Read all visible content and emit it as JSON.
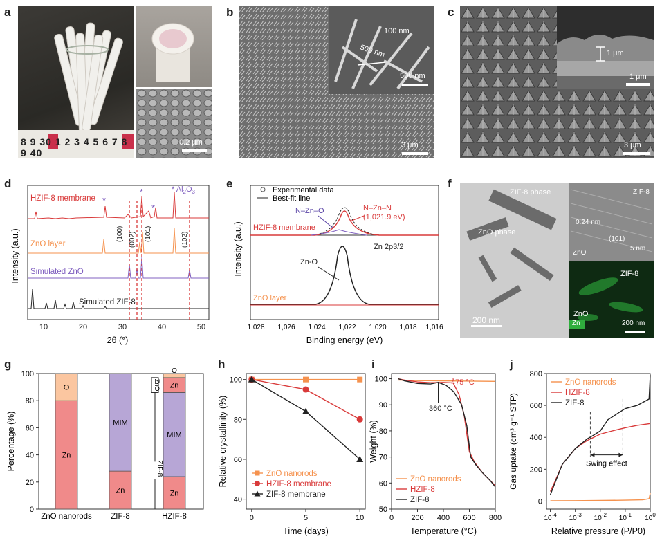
{
  "panels": {
    "a": {
      "label": "a",
      "ruler_text": "8 9 30 1 2 3 4 5 6 7 8 9 40",
      "scale": "0.2 μm"
    },
    "b": {
      "label": "b",
      "inset_dim1": "100 nm",
      "inset_dim2": "500 nm",
      "inset_scale": "500 nm",
      "scale": "3 μm"
    },
    "c": {
      "label": "c",
      "inset_dim": "1 μm",
      "inset_scale": "1 μm",
      "scale": "3 μm"
    },
    "d": {
      "label": "d",
      "ylabel": "Intensity (a.u.)",
      "xlabel": "2θ (°)",
      "series": [
        "HZIF-8 membrane",
        "ZnO layer",
        "Simulated ZnO",
        "Simulated ZIF-8"
      ],
      "legend_al": "Al",
      "legend_al_sub1": "2",
      "legend_al_o": "O",
      "legend_al_sub2": "3",
      "star": "*",
      "peaks": [
        "(100)",
        "(002)",
        "(101)",
        "(102)"
      ],
      "xticks": [
        "10",
        "20",
        "30",
        "40",
        "50"
      ]
    },
    "e": {
      "label": "e",
      "legend": [
        "Experimental data",
        "Best-fit line"
      ],
      "ann": [
        "N–Zn–O",
        "N–Zn–N",
        "(1,021.9 eV)",
        "HZIF-8 membrane",
        "Zn 2p3/2",
        "Zn-O",
        "ZnO layer"
      ],
      "ylabel": "Intensity (a.u.)",
      "xlabel": "Binding energy (eV)",
      "xticks": [
        "1,028",
        "1,026",
        "1,024",
        "1,022",
        "1,020",
        "1,018",
        "1,016"
      ]
    },
    "f": {
      "label": "f",
      "ann": [
        "ZIF-8 phase",
        "ZnO phase",
        "0.24 nm",
        "(101)",
        "ZnO",
        "ZIF-8",
        "ZIF-8",
        "ZnO",
        "Zn"
      ],
      "scale1": "200 nm",
      "scale2": "5 nm",
      "scale3": "200 nm"
    },
    "g": {
      "label": "g"
    },
    "h": {
      "label": "h"
    },
    "i": {
      "label": "i"
    },
    "j": {
      "label": "j"
    }
  },
  "chart_data": [
    {
      "panel": "g",
      "type": "bar",
      "categories": [
        "ZnO nanorods",
        "ZIF-8",
        "HZIF-8"
      ],
      "series": [
        {
          "name": "Zn",
          "values": [
            80,
            28,
            24
          ]
        },
        {
          "name": "MIM",
          "values": [
            0,
            72,
            62
          ]
        },
        {
          "name": "Zn",
          "values": [
            0,
            0,
            11
          ]
        },
        {
          "name": "O",
          "values": [
            20,
            0,
            3
          ]
        }
      ],
      "ylabel": "Percentage (%)",
      "ylim": [
        0,
        100
      ],
      "yticks": [
        "0",
        "20",
        "40",
        "60",
        "80",
        "100"
      ],
      "bracket_labels": [
        "ZnO",
        "ZIF-8"
      ],
      "colors": {
        "Zn": "#f08a8a",
        "MIM": "#b7a6d6",
        "O": "#fbc6a0"
      }
    },
    {
      "panel": "h",
      "type": "line",
      "x": [
        0,
        5,
        10
      ],
      "series": [
        {
          "name": "ZnO nanorods",
          "values": [
            100,
            100,
            100
          ],
          "color": "#f5924e"
        },
        {
          "name": "HZIF-8 membrane",
          "values": [
            100,
            95,
            80
          ],
          "color": "#d93a3a"
        },
        {
          "name": "ZIF-8 membrane",
          "values": [
            100,
            84,
            60
          ],
          "color": "#222222"
        }
      ],
      "xlabel": "Time (days)",
      "ylabel": "Relative crystallinity (%)",
      "ylim": [
        35,
        103
      ],
      "xlim": [
        -0.5,
        10.5
      ],
      "xticks": [
        "0",
        "5",
        "10"
      ],
      "yticks": [
        "40",
        "60",
        "80",
        "100"
      ]
    },
    {
      "panel": "i",
      "type": "line",
      "series": [
        {
          "name": "ZnO nanorods",
          "color": "#f5924e",
          "x": [
            50,
            200,
            400,
            600,
            800
          ],
          "values": [
            99.5,
            99.3,
            99.2,
            99.1,
            99
          ]
        },
        {
          "name": "HZIF-8",
          "color": "#d93a3a",
          "x": [
            50,
            100,
            200,
            300,
            400,
            475,
            520,
            560,
            600,
            640,
            700,
            760,
            800
          ],
          "values": [
            100,
            99.5,
            98.8,
            98.5,
            98.6,
            98.4,
            94,
            86,
            72,
            68,
            64,
            61,
            59
          ]
        },
        {
          "name": "ZIF-8",
          "color": "#222222",
          "x": [
            50,
            100,
            200,
            300,
            360,
            420,
            480,
            540,
            580,
            610,
            650,
            700,
            760,
            800
          ],
          "values": [
            100,
            99.2,
            98.2,
            98,
            98.6,
            97.5,
            95,
            90,
            82,
            70,
            67,
            64,
            61,
            58.5
          ]
        }
      ],
      "annotations": [
        "475 °C",
        "360 °C"
      ],
      "xlabel": "Temperature (°C)",
      "ylabel": "Weight (%)",
      "ylim": [
        50,
        102
      ],
      "xlim": [
        0,
        800
      ],
      "xticks": [
        "0",
        "200",
        "400",
        "600",
        "800"
      ],
      "yticks": [
        "50",
        "60",
        "70",
        "80",
        "90",
        "100"
      ]
    },
    {
      "panel": "j",
      "type": "line",
      "series": [
        {
          "name": "ZnO nanorods",
          "color": "#f5924e",
          "x": [
            0.0001,
            0.001,
            0.01,
            0.1,
            0.5,
            0.9,
            1.0
          ],
          "values": [
            2,
            3,
            4,
            6,
            8,
            15,
            50
          ]
        },
        {
          "name": "HZIF-8",
          "color": "#d93a3a",
          "x": [
            0.0001,
            0.00015,
            0.0003,
            0.001,
            0.003,
            0.01,
            0.03,
            0.1,
            0.3,
            0.9,
            1.0
          ],
          "values": [
            60,
            120,
            230,
            330,
            380,
            420,
            440,
            460,
            475,
            485,
            490
          ]
        },
        {
          "name": "ZIF-8",
          "color": "#222222",
          "x": [
            0.0001,
            0.00015,
            0.0003,
            0.001,
            0.003,
            0.005,
            0.01,
            0.02,
            0.05,
            0.1,
            0.3,
            0.9,
            1.0
          ],
          "values": [
            40,
            110,
            230,
            330,
            390,
            410,
            440,
            510,
            550,
            580,
            600,
            640,
            790
          ]
        }
      ],
      "annotations": [
        "Swing effect"
      ],
      "xlabel": "Relative pressure (P/P0)",
      "ylabel": "Gas uptake (cm³ g⁻¹ STP)",
      "ylim": [
        -50,
        800
      ],
      "xticks": [
        "10-4",
        "10-3",
        "10-2",
        "10-1",
        "100"
      ],
      "yticks": [
        "0",
        "200",
        "400",
        "600",
        "800"
      ],
      "xscale": "log"
    }
  ]
}
